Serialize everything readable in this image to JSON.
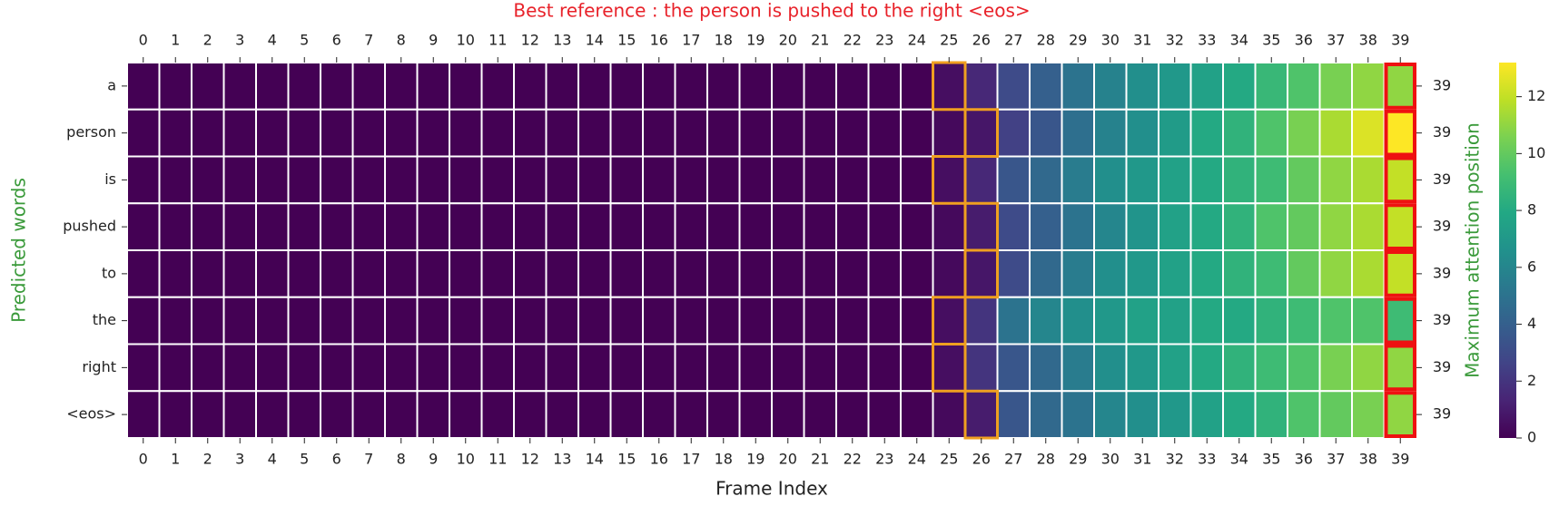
{
  "chart_data": {
    "type": "heatmap",
    "title": "Best reference : the person is pushed to the right <eos>",
    "xlabel": "Frame Index",
    "ylabel": "Predicted words",
    "colorbar_label": "Maximum attention position",
    "colormap": "viridis",
    "x": [
      0,
      1,
      2,
      3,
      4,
      5,
      6,
      7,
      8,
      9,
      10,
      11,
      12,
      13,
      14,
      15,
      16,
      17,
      18,
      19,
      20,
      21,
      22,
      23,
      24,
      25,
      26,
      27,
      28,
      29,
      30,
      31,
      32,
      33,
      34,
      35,
      36,
      37,
      38,
      39
    ],
    "rows": [
      "a",
      "person",
      "is",
      "pushed",
      "to",
      "the",
      "right",
      "<eos>"
    ],
    "values": [
      [
        0,
        0,
        0,
        0,
        0,
        0,
        0,
        0,
        0,
        0,
        0,
        0,
        0,
        0,
        0,
        0,
        0,
        0,
        0,
        0,
        0,
        0,
        0,
        0,
        0,
        0.5,
        1.5,
        3.0,
        4.0,
        5.0,
        5.8,
        6.5,
        7.0,
        7.5,
        8.0,
        8.8,
        9.5,
        10.5,
        11.0,
        11.0
      ],
      [
        0,
        0,
        0,
        0,
        0,
        0,
        0,
        0,
        0,
        0,
        0,
        0,
        0,
        0,
        0,
        0,
        0,
        0,
        0,
        0,
        0,
        0,
        0,
        0,
        0,
        0.3,
        0.8,
        2.5,
        3.5,
        4.8,
        5.8,
        6.5,
        7.2,
        8.0,
        8.5,
        9.5,
        10.5,
        11.5,
        12.5,
        13.2
      ],
      [
        0,
        0,
        0,
        0,
        0,
        0,
        0,
        0,
        0,
        0,
        0,
        0,
        0,
        0,
        0,
        0,
        0,
        0,
        0,
        0,
        0,
        0,
        0,
        0,
        0,
        0.5,
        1.5,
        3.5,
        4.5,
        5.5,
        6.5,
        7.0,
        7.5,
        8.0,
        8.5,
        9.0,
        10.0,
        11.0,
        11.5,
        12.0
      ],
      [
        0,
        0,
        0,
        0,
        0,
        0,
        0,
        0,
        0,
        0,
        0,
        0,
        0,
        0,
        0,
        0,
        0,
        0,
        0,
        0,
        0,
        0,
        0,
        0,
        0,
        0.3,
        1.0,
        3.0,
        4.0,
        5.0,
        6.0,
        6.8,
        7.5,
        8.0,
        8.5,
        9.5,
        10.0,
        11.0,
        11.5,
        12.0
      ],
      [
        0,
        0,
        0,
        0,
        0,
        0,
        0,
        0,
        0,
        0,
        0,
        0,
        0,
        0,
        0,
        0,
        0,
        0,
        0,
        0,
        0,
        0,
        0,
        0,
        0,
        0.3,
        0.8,
        3.0,
        4.5,
        5.5,
        6.5,
        7.0,
        7.5,
        8.0,
        8.5,
        9.0,
        10.0,
        11.0,
        11.5,
        12.0
      ],
      [
        0,
        0,
        0,
        0,
        0,
        0,
        0,
        0,
        0,
        0,
        0,
        0,
        0,
        0,
        0,
        0,
        0,
        0,
        0,
        0,
        0,
        0,
        0,
        0,
        0,
        0.5,
        2.0,
        5.0,
        6.0,
        6.5,
        7.0,
        7.5,
        7.5,
        8.0,
        8.0,
        8.5,
        9.0,
        9.5,
        9.5,
        9.0
      ],
      [
        0,
        0,
        0,
        0,
        0,
        0,
        0,
        0,
        0,
        0,
        0,
        0,
        0,
        0,
        0,
        0,
        0,
        0,
        0,
        0,
        0,
        0,
        0,
        0,
        0,
        0.5,
        2.0,
        3.5,
        4.5,
        5.5,
        6.5,
        7.0,
        7.5,
        8.0,
        8.5,
        9.0,
        9.5,
        10.5,
        11.0,
        11.0
      ],
      [
        0,
        0,
        0,
        0,
        0,
        0,
        0,
        0,
        0,
        0,
        0,
        0,
        0,
        0,
        0,
        0,
        0,
        0,
        0,
        0,
        0,
        0,
        0,
        0,
        0,
        0.3,
        1.0,
        3.5,
        4.5,
        5.0,
        6.0,
        6.5,
        7.0,
        7.5,
        8.0,
        8.5,
        9.5,
        10.0,
        10.5,
        11.0
      ]
    ],
    "best_reference": [
      25,
      26,
      25,
      26,
      26,
      25,
      25,
      26
    ],
    "best_reference_color": "#f0a020",
    "max_position": [
      39,
      39,
      39,
      39,
      39,
      39,
      39,
      39
    ],
    "max_position_color": "#ee1111",
    "clim": [
      0,
      13.2
    ],
    "cticks": [
      0,
      2,
      4,
      6,
      8,
      10,
      12
    ],
    "title_color": "#e8222a",
    "ylabel_color": "#3a9a3a",
    "colorbar_label_color": "#3a9a3a"
  }
}
